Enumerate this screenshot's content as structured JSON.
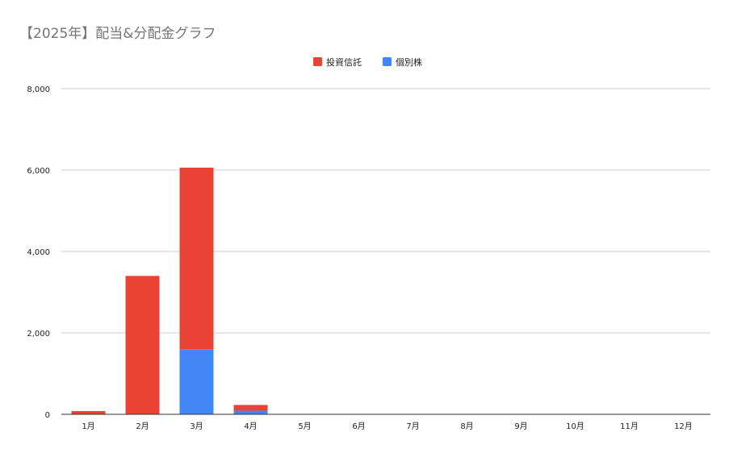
{
  "chart_data": {
    "type": "bar",
    "stacked": true,
    "title": "【2025年】配当&分配金グラフ",
    "xlabel": "",
    "ylabel": "",
    "categories": [
      "1月",
      "2月",
      "3月",
      "4月",
      "5月",
      "6月",
      "7月",
      "8月",
      "9月",
      "10月",
      "11月",
      "12月"
    ],
    "series": [
      {
        "name": "個別株",
        "color": "#4285f4",
        "values": [
          0,
          0,
          1600,
          90,
          0,
          0,
          0,
          0,
          0,
          0,
          0,
          0
        ]
      },
      {
        "name": "投資信託",
        "color": "#ea4335",
        "values": [
          80,
          3400,
          4460,
          140,
          0,
          0,
          0,
          0,
          0,
          0,
          0,
          0
        ]
      }
    ],
    "legend_order": [
      "投資信託",
      "個別株"
    ],
    "legend_position": "top",
    "ylim": [
      0,
      8000
    ],
    "yticks": [
      0,
      2000,
      4000,
      6000,
      8000
    ],
    "ytick_labels": [
      "0",
      "2,000",
      "4,000",
      "6,000",
      "8,000"
    ],
    "grid": true
  }
}
